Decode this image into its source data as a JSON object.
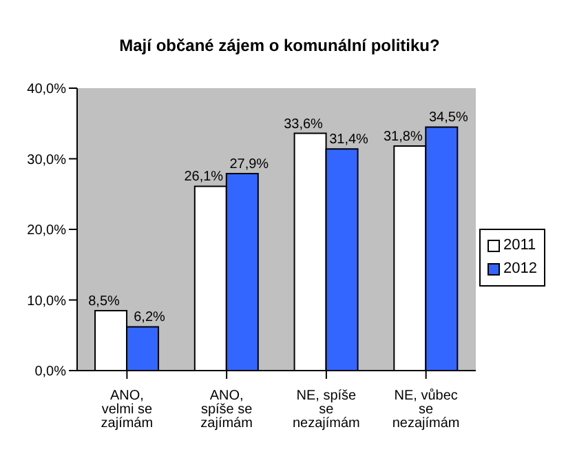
{
  "chart_data": {
    "type": "bar",
    "title": "Mají občané zájem o komunální politiku?",
    "categories": [
      "ANO, velmi se zajímám",
      "ANO, spíše se zajímám",
      "NE, spíše se nezajímám",
      "NE, vůbec se nezajímám"
    ],
    "series": [
      {
        "name": "2011",
        "color": "#ffffff",
        "values": [
          8.5,
          26.1,
          33.6,
          31.8
        ],
        "value_labels": [
          "8,5%",
          "26,1%",
          "33,6%",
          "31,8%"
        ]
      },
      {
        "name": "2012",
        "color": "#3366ff",
        "values": [
          6.2,
          27.9,
          31.4,
          34.5
        ],
        "value_labels": [
          "6,2%",
          "27,9%",
          "31,4%",
          "34,5%"
        ]
      }
    ],
    "ylim": [
      0,
      40
    ],
    "yticks": [
      {
        "value": 0,
        "label": "0,0%"
      },
      {
        "value": 10,
        "label": "10,0%"
      },
      {
        "value": 20,
        "label": "20,0%"
      },
      {
        "value": 30,
        "label": "30,0%"
      },
      {
        "value": 40,
        "label": "40,0%"
      }
    ],
    "grid": false,
    "legend": "right"
  }
}
